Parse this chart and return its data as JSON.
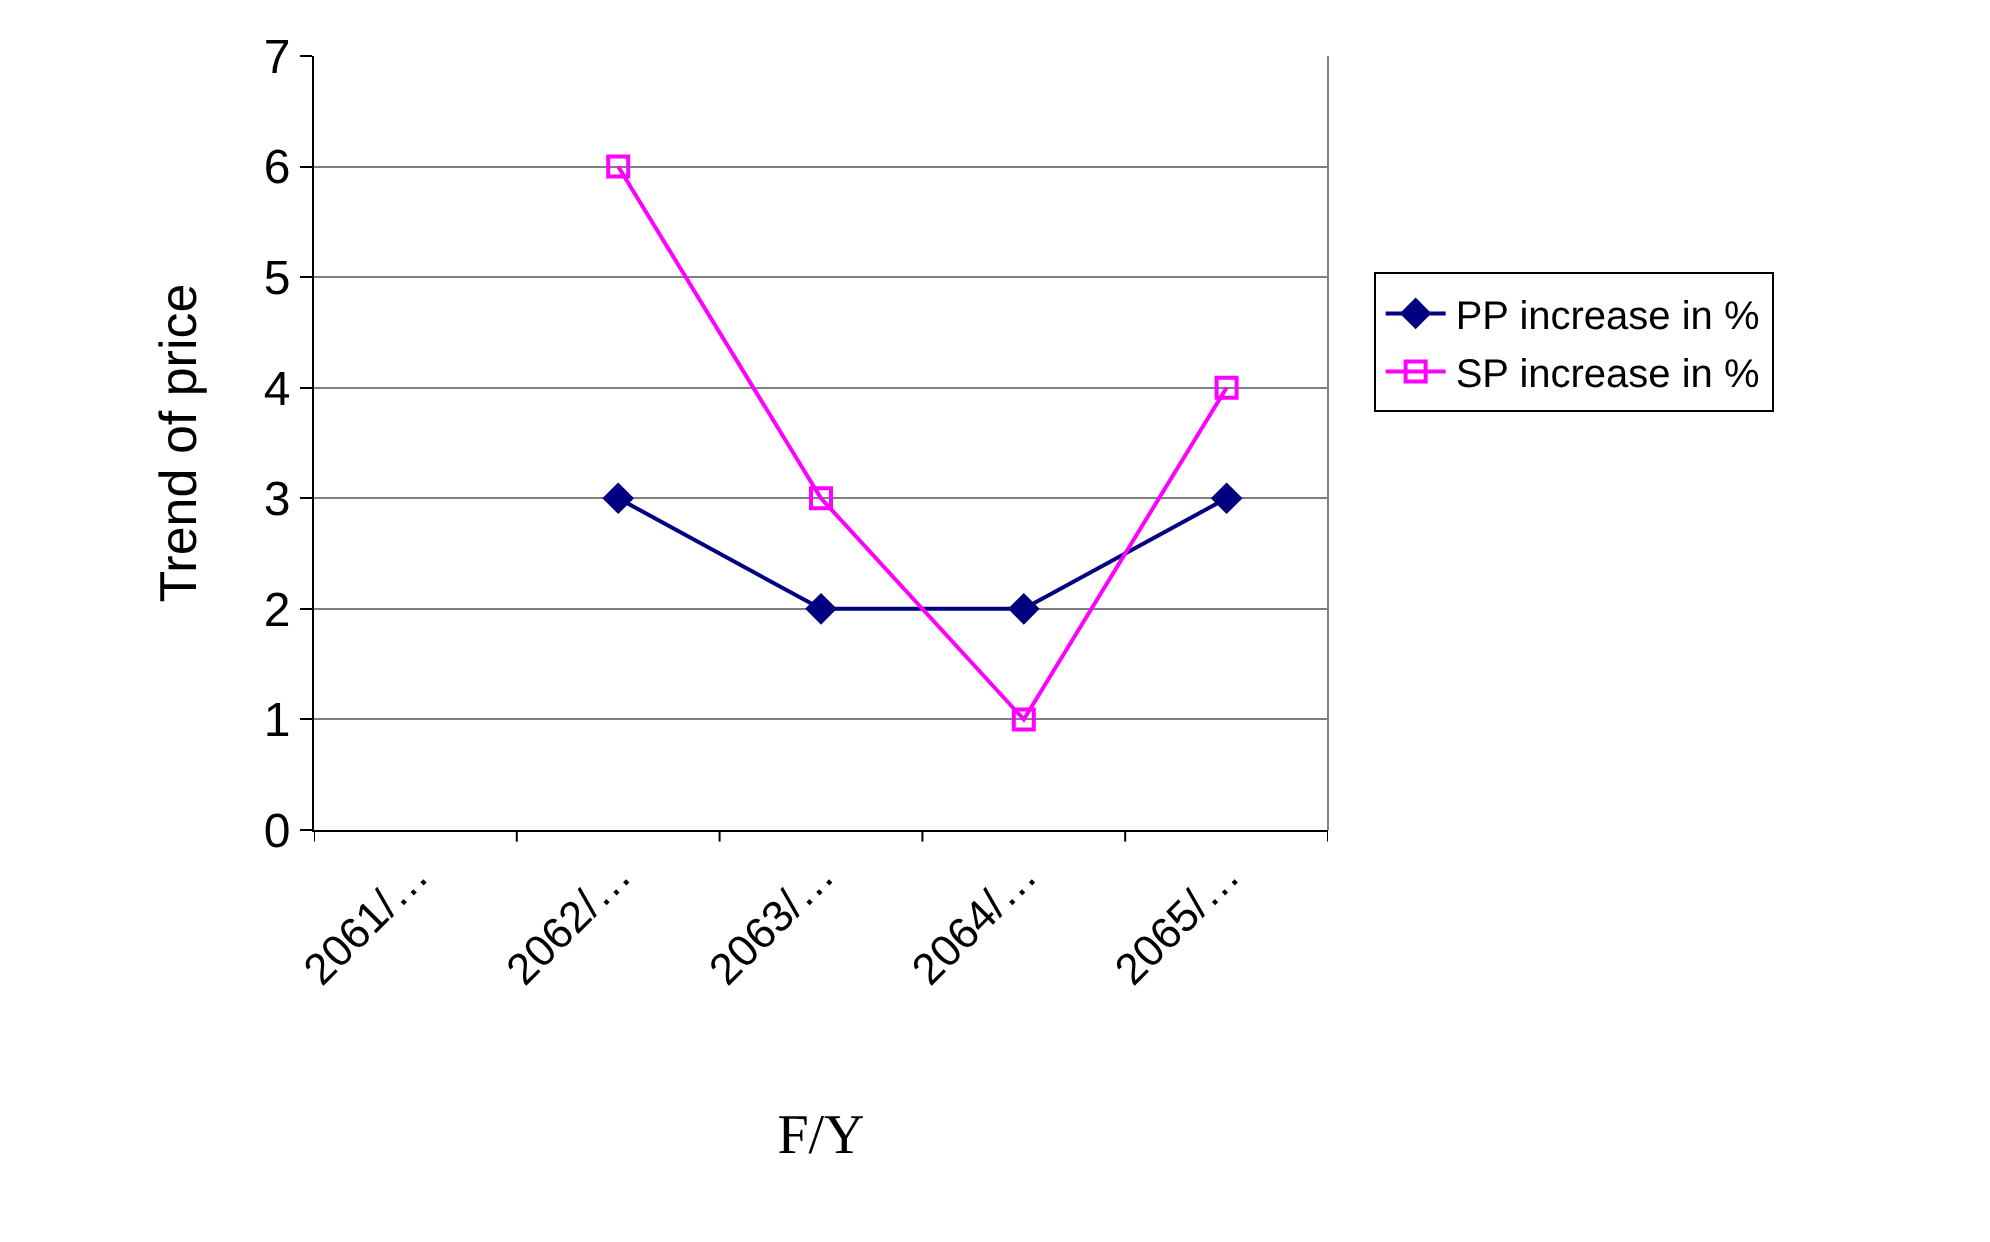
{
  "chart_data": {
    "type": "line",
    "xlabel": "F/Y",
    "ylabel": "Trend of price",
    "categories": [
      "2061/…",
      "2062/…",
      "2063/…",
      "2064/…",
      "2065/…"
    ],
    "series": [
      {
        "name": "PP increase in %",
        "color": "#000080",
        "marker": "diamond",
        "values": [
          null,
          3,
          2,
          2,
          3
        ]
      },
      {
        "name": "SP increase in %",
        "color": "#ff00ff",
        "marker": "square-open",
        "values": [
          null,
          6,
          3,
          1,
          4
        ]
      }
    ],
    "ylim": [
      0,
      7
    ],
    "yticks": [
      0,
      1,
      2,
      3,
      4,
      5,
      6,
      7
    ],
    "grid": "y",
    "legend": "right",
    "line_style": "solid"
  }
}
